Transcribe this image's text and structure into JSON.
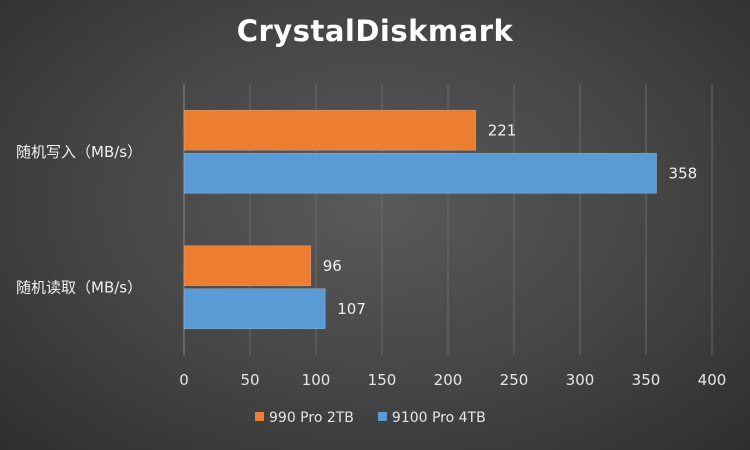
{
  "chart_data": {
    "type": "bar",
    "orientation": "horizontal",
    "title": "CrystalDiskmark",
    "categories": [
      "随机写入（MB/s）",
      "随机读取（MB/s）"
    ],
    "series": [
      {
        "name": "990 Pro 2TB",
        "values": [
          221,
          96
        ],
        "color": "#ed7d31"
      },
      {
        "name": "9100 Pro 4TB",
        "values": [
          358,
          107
        ],
        "color": "#5b9bd5"
      }
    ],
    "xlim": [
      0,
      400
    ],
    "xticks": [
      0,
      50,
      100,
      150,
      200,
      250,
      300,
      350,
      400
    ],
    "grid": true,
    "legend_position": "bottom",
    "background_color": "#4a4a4a"
  }
}
